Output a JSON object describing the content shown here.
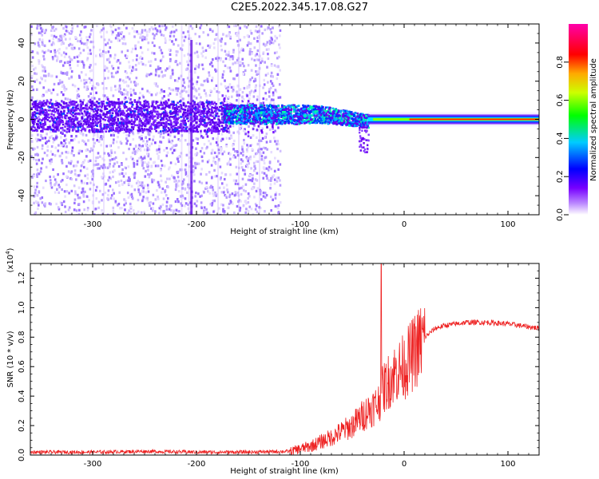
{
  "figure_title": "C2E5.2022.345.17.08.G27",
  "chart_data": [
    {
      "type": "heatmap",
      "title": "C2E5.2022.345.17.08.G27",
      "xlabel": "Height of straight line (km)",
      "ylabel": "Frequency (Hz)",
      "xlim": [
        -360,
        130
      ],
      "ylim": [
        -50,
        50
      ],
      "x_ticks": [
        -300,
        -200,
        -100,
        0,
        100
      ],
      "y_ticks": [
        -40,
        -20,
        0,
        20,
        40
      ],
      "colorbar": {
        "label": "Normalized spectral amplitude",
        "range": [
          0.0,
          1.0
        ],
        "ticks": [
          0.0,
          0.2,
          0.4,
          0.6,
          0.8
        ],
        "colormap": [
          "#ffffff",
          "#8800ff",
          "#0000ff",
          "#00ccff",
          "#00ff00",
          "#ffff00",
          "#ff0000",
          "#ff00cc"
        ]
      },
      "series": [
        {
          "description_region": "noise",
          "x": [
            -360,
            -120
          ],
          "y_center": 0,
          "amplitude": 0.15
        },
        {
          "description_region": "band",
          "x": [
            -175,
            -35
          ],
          "y_center": 3,
          "amplitude": 0.35
        },
        {
          "description_region": "carrier",
          "x": [
            -35,
            130
          ],
          "y_center": 0,
          "amplitude": 0.9
        }
      ],
      "grid": false
    },
    {
      "type": "line",
      "xlabel": "Height of straight line (km)",
      "ylabel": "SNR (10 * v/v)",
      "multiplier_label": "(x10",
      "multiplier_exp": "4",
      "xlim": [
        -360,
        130
      ],
      "ylim": [
        0,
        1.3
      ],
      "x_ticks": [
        -300,
        -200,
        -100,
        0,
        100
      ],
      "y_ticks": [
        "0.0",
        "0.2",
        "0.4",
        "0.6",
        "0.8",
        "1.0",
        "1.2"
      ],
      "y_tick_values": [
        0.0,
        0.2,
        0.4,
        0.6,
        0.8,
        1.0,
        1.2
      ],
      "color": "#ee2222",
      "x": [
        -360,
        -300,
        -250,
        -200,
        -150,
        -110,
        -90,
        -70,
        -50,
        -35,
        -25,
        -20,
        -10,
        0,
        10,
        20,
        30,
        40,
        60,
        80,
        100,
        120,
        130
      ],
      "values": [
        0.02,
        0.02,
        0.025,
        0.02,
        0.02,
        0.025,
        0.06,
        0.12,
        0.2,
        0.3,
        0.35,
        0.45,
        0.55,
        0.6,
        0.7,
        0.8,
        0.86,
        0.88,
        0.9,
        0.9,
        0.89,
        0.87,
        0.86
      ],
      "spike": {
        "x": -22,
        "value": 1.3
      },
      "grid": false
    }
  ]
}
